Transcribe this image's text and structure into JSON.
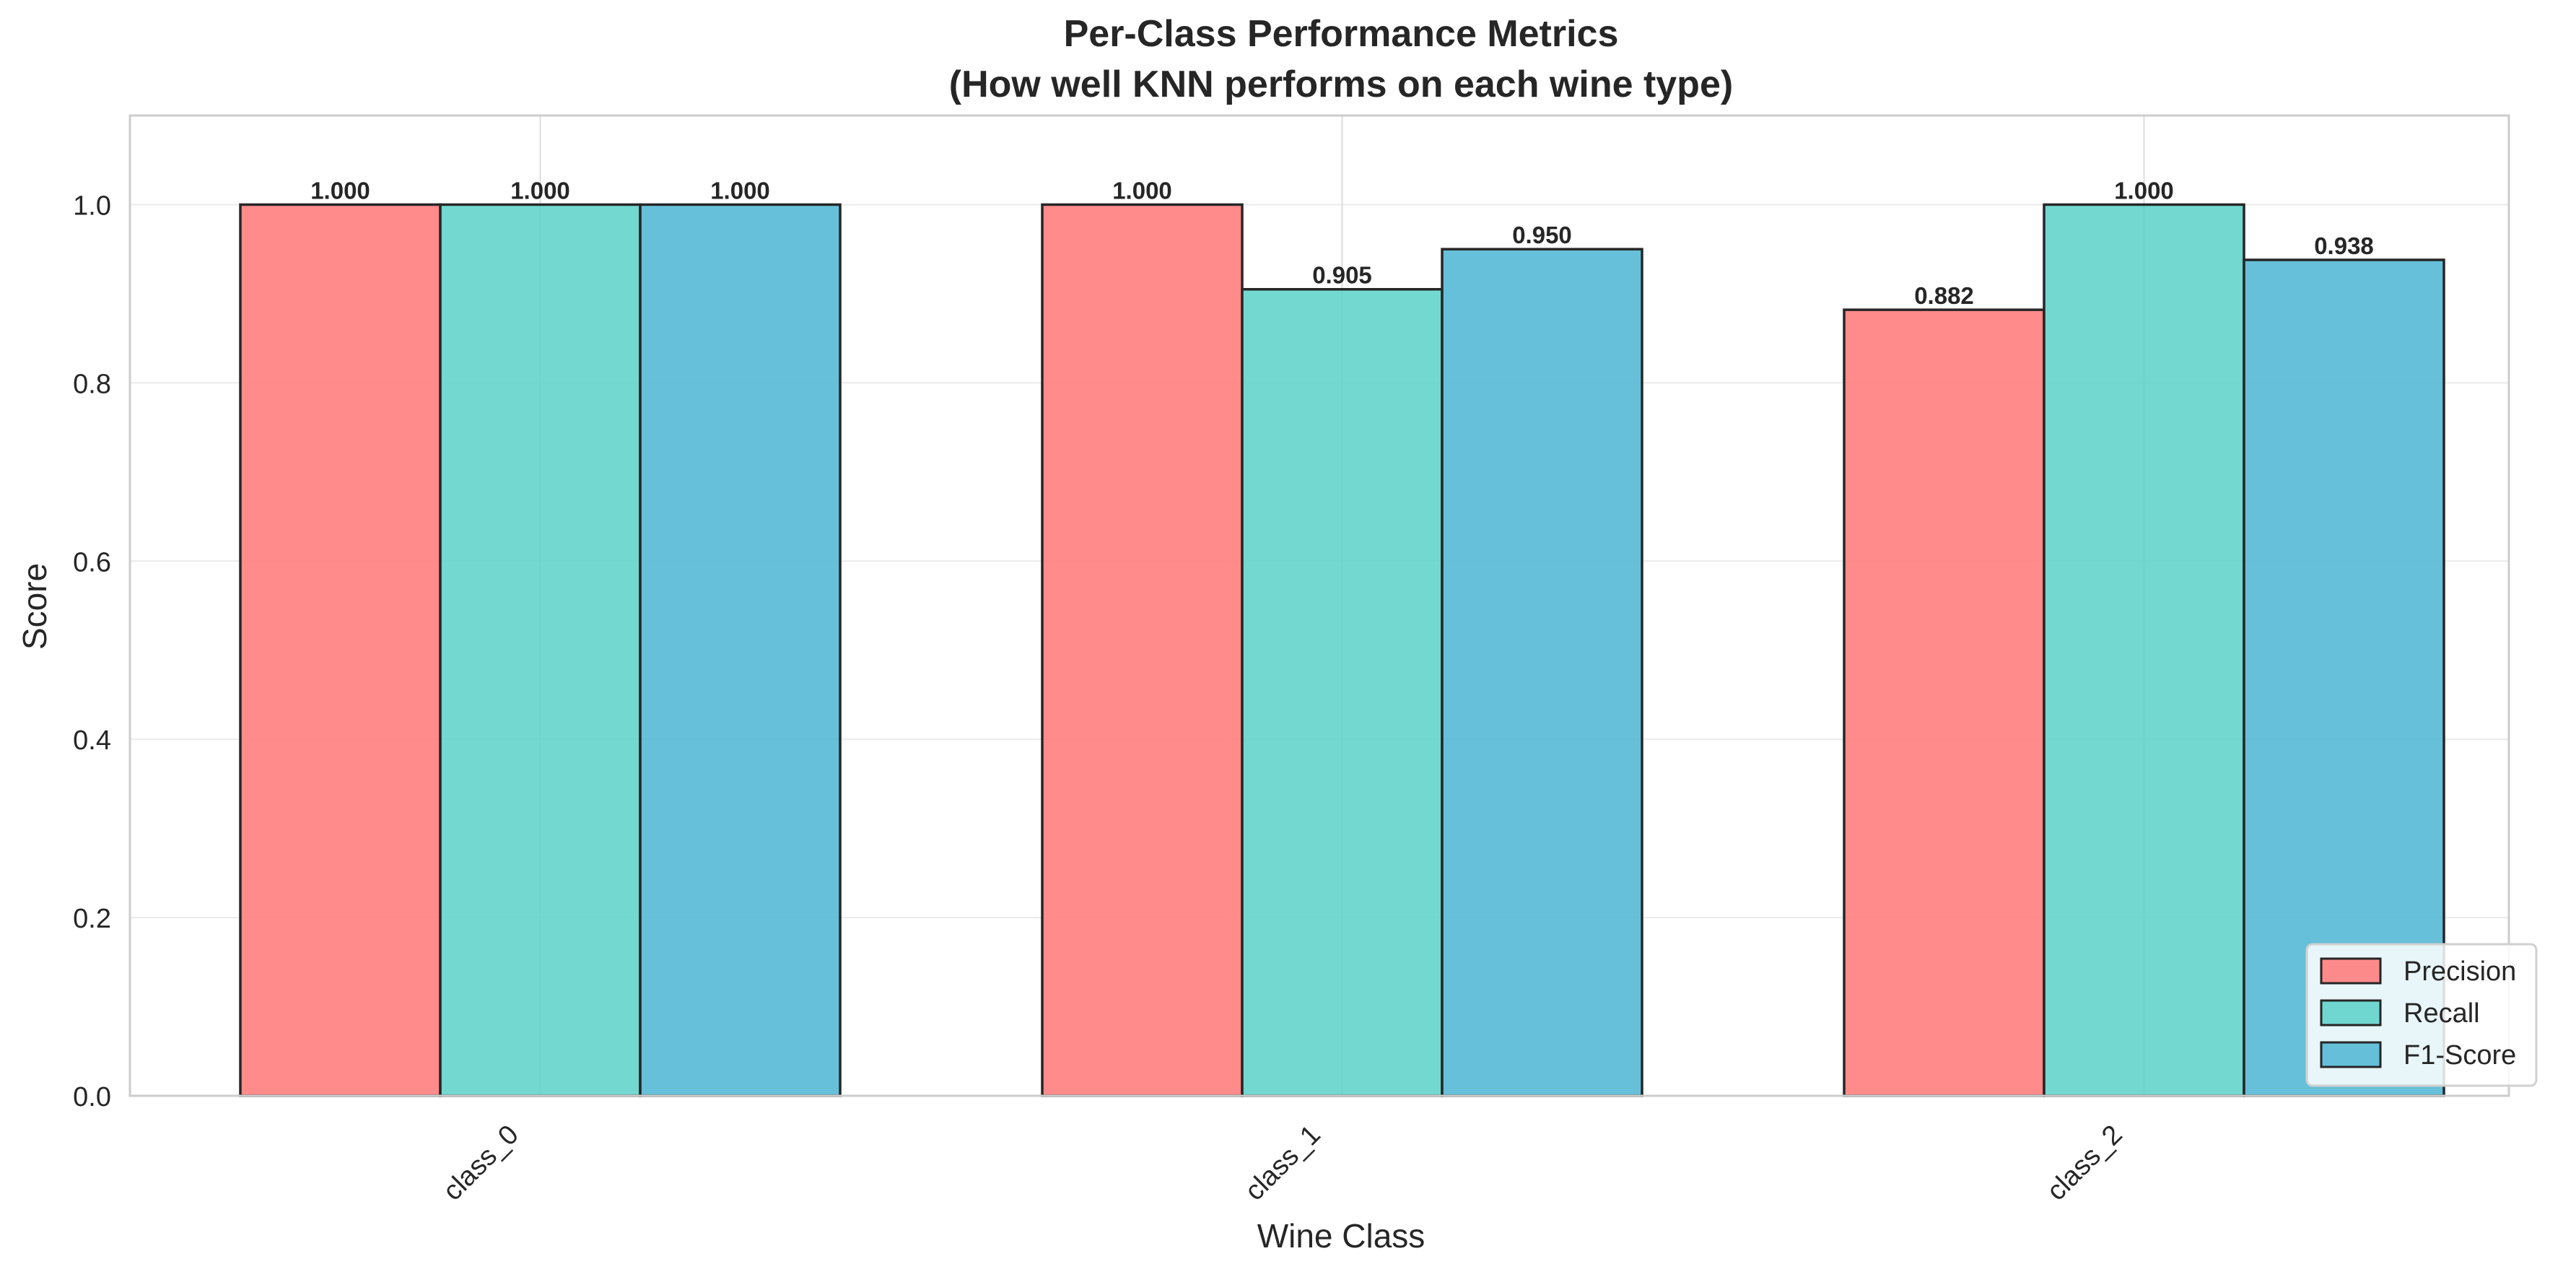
{
  "chart_data": {
    "type": "bar",
    "title": "Per-Class Performance Metrics",
    "subtitle": "(How well KNN performs on each wine type)",
    "xlabel": "Wine Class",
    "ylabel": "Score",
    "categories": [
      "class_0",
      "class_1",
      "class_2"
    ],
    "ylim": [
      0,
      1.1
    ],
    "yticks": [
      0.0,
      0.2,
      0.4,
      0.6,
      0.8,
      1.0
    ],
    "ytick_labels": [
      "0.0",
      "0.2",
      "0.4",
      "0.6",
      "0.8",
      "1.0"
    ],
    "grid": true,
    "legend_position": "bottom-right",
    "series": [
      {
        "name": "Precision",
        "color": "#ff7b7b",
        "values": [
          1.0,
          1.0,
          0.882
        ],
        "labels": [
          "1.000",
          "1.000",
          "0.882"
        ]
      },
      {
        "name": "Recall",
        "color": "#5fd3c9",
        "values": [
          1.0,
          0.905,
          1.0
        ],
        "labels": [
          "1.000",
          "0.905",
          "1.000"
        ]
      },
      {
        "name": "F1-Score",
        "color": "#52b7d4",
        "values": [
          1.0,
          0.95,
          0.938
        ],
        "labels": [
          "1.000",
          "0.950",
          "0.938"
        ]
      }
    ]
  }
}
